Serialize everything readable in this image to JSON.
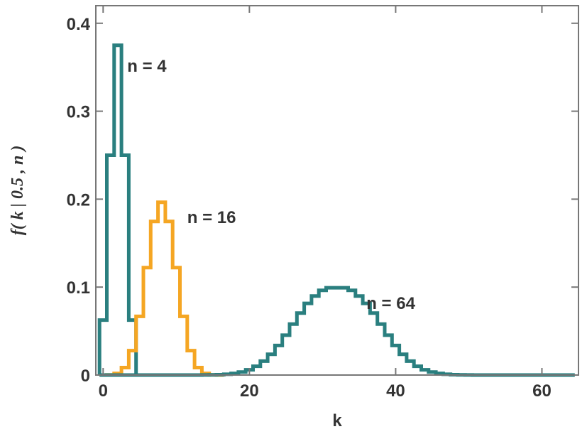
{
  "chart_data": {
    "type": "line",
    "xlabel": "k",
    "ylabel": "f( k | 0.5 , n )",
    "xlim": [
      -1,
      65
    ],
    "ylim": [
      0,
      0.42
    ],
    "xticks": [
      0,
      20,
      40,
      60
    ],
    "xtick_labels": [
      "0",
      "20",
      "40",
      "60"
    ],
    "yticks": [
      0,
      0.1,
      0.2,
      0.3,
      0.4
    ],
    "ytick_labels": [
      "0",
      "0.1",
      "0.2",
      "0.3",
      "0.4"
    ],
    "grid": false,
    "style": "step histogram",
    "series": [
      {
        "name": "n = 4",
        "n": 4,
        "p": 0.5,
        "color": "#2a7f7f",
        "x": [
          0,
          1,
          2,
          3,
          4
        ],
        "values": [
          0.0625,
          0.25,
          0.375,
          0.25,
          0.0625
        ]
      },
      {
        "name": "n = 16",
        "n": 16,
        "p": 0.5,
        "color": "#f5a623",
        "x": [
          0,
          1,
          2,
          3,
          4,
          5,
          6,
          7,
          8,
          9,
          10,
          11,
          12,
          13,
          14,
          15,
          16
        ],
        "values": [
          2e-05,
          0.0002,
          0.0018,
          0.0085,
          0.0278,
          0.0667,
          0.1222,
          0.1746,
          0.1964,
          0.1746,
          0.1222,
          0.0667,
          0.0278,
          0.0085,
          0.0018,
          0.0002,
          2e-05
        ]
      },
      {
        "name": "n = 64",
        "n": 64,
        "p": 0.5,
        "color": "#2a7f7f",
        "x": [
          0,
          1,
          2,
          3,
          4,
          5,
          6,
          7,
          8,
          9,
          10,
          11,
          12,
          13,
          14,
          15,
          16,
          17,
          18,
          19,
          20,
          21,
          22,
          23,
          24,
          25,
          26,
          27,
          28,
          29,
          30,
          31,
          32,
          33,
          34,
          35,
          36,
          37,
          38,
          39,
          40,
          41,
          42,
          43,
          44,
          45,
          46,
          47,
          48,
          49,
          50,
          51,
          52,
          53,
          54,
          55,
          56,
          57,
          58,
          59,
          60,
          61,
          62,
          63,
          64
        ],
        "values": [
          0,
          0,
          0,
          0,
          0,
          0,
          0,
          0,
          0,
          0,
          0,
          0,
          0,
          0,
          0.0001,
          0.0002,
          0.0004,
          0.0009,
          0.0018,
          0.0034,
          0.006,
          0.01,
          0.0158,
          0.0237,
          0.0336,
          0.0453,
          0.0579,
          0.0705,
          0.0815,
          0.0899,
          0.0963,
          0.0993,
          0.0993,
          0.0993,
          0.0963,
          0.0899,
          0.0815,
          0.0705,
          0.0579,
          0.0453,
          0.0336,
          0.0237,
          0.0158,
          0.01,
          0.006,
          0.0034,
          0.0018,
          0.0009,
          0.0004,
          0.0002,
          0.0001,
          0,
          0,
          0,
          0,
          0,
          0,
          0,
          0,
          0,
          0,
          0,
          0,
          0,
          0
        ]
      }
    ],
    "annotations": [
      {
        "text": "n = 4",
        "x": 3.3,
        "y": 0.345
      },
      {
        "text": "n = 16",
        "x": 11.5,
        "y": 0.173
      },
      {
        "text": "n = 64",
        "x": 36.0,
        "y": 0.075
      }
    ]
  }
}
